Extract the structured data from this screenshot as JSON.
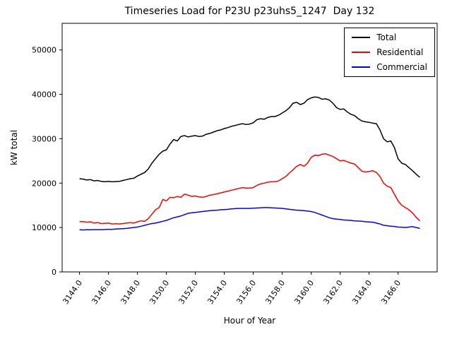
{
  "figure": {
    "background": "#ffffff"
  },
  "chart_data": {
    "type": "line",
    "title": "Timeseries Load for P23U p23uhs5_1247  Day 132",
    "xlabel": "Hour of Year",
    "ylabel": "kW total",
    "xlim": [
      3142.8,
      3168.7
    ],
    "ylim": [
      0,
      56000
    ],
    "grid": false,
    "legend_position": "upper right",
    "xticks": [
      {
        "value": 3144,
        "label": "3144.0"
      },
      {
        "value": 3146,
        "label": "3146.0"
      },
      {
        "value": 3148,
        "label": "3148.0"
      },
      {
        "value": 3150,
        "label": "3150.0"
      },
      {
        "value": 3152,
        "label": "3152.0"
      },
      {
        "value": 3154,
        "label": "3154.0"
      },
      {
        "value": 3156,
        "label": "3156.0"
      },
      {
        "value": 3158,
        "label": "3158.0"
      },
      {
        "value": 3160,
        "label": "3160.0"
      },
      {
        "value": 3162,
        "label": "3162.0"
      },
      {
        "value": 3164,
        "label": "3164.0"
      },
      {
        "value": 3166,
        "label": "3166.0"
      }
    ],
    "yticks": [
      {
        "value": 0,
        "label": "0"
      },
      {
        "value": 10000,
        "label": "10000"
      },
      {
        "value": 20000,
        "label": "20000"
      },
      {
        "value": 30000,
        "label": "30000"
      },
      {
        "value": 40000,
        "label": "40000"
      },
      {
        "value": 50000,
        "label": "50000"
      }
    ],
    "x": [
      3144.0,
      3144.25,
      3144.5,
      3144.75,
      3145.0,
      3145.25,
      3145.5,
      3145.75,
      3146.0,
      3146.25,
      3146.5,
      3146.75,
      3147.0,
      3147.25,
      3147.5,
      3147.75,
      3148.0,
      3148.25,
      3148.5,
      3148.75,
      3149.0,
      3149.25,
      3149.5,
      3149.75,
      3150.0,
      3150.25,
      3150.5,
      3150.75,
      3151.0,
      3151.25,
      3151.5,
      3151.75,
      3152.0,
      3152.25,
      3152.5,
      3152.75,
      3153.0,
      3153.25,
      3153.5,
      3153.75,
      3154.0,
      3154.25,
      3154.5,
      3154.75,
      3155.0,
      3155.25,
      3155.5,
      3155.75,
      3156.0,
      3156.25,
      3156.5,
      3156.75,
      3157.0,
      3157.25,
      3157.5,
      3157.75,
      3158.0,
      3158.25,
      3158.5,
      3158.75,
      3159.0,
      3159.25,
      3159.5,
      3159.75,
      3160.0,
      3160.25,
      3160.5,
      3160.75,
      3161.0,
      3161.25,
      3161.5,
      3161.75,
      3162.0,
      3162.25,
      3162.5,
      3162.75,
      3163.0,
      3163.25,
      3163.5,
      3163.75,
      3164.0,
      3164.25,
      3164.5,
      3164.75,
      3165.0,
      3165.25,
      3165.5,
      3165.75,
      3166.0,
      3166.25,
      3166.5,
      3166.75,
      3167.0,
      3167.25,
      3167.5
    ],
    "series": [
      {
        "name": "Total",
        "color": "#000000",
        "values": [
          21000,
          20900,
          20700,
          20800,
          20500,
          20600,
          20400,
          20300,
          20400,
          20300,
          20350,
          20400,
          20600,
          20800,
          21000,
          21100,
          21600,
          22000,
          22400,
          23200,
          24500,
          25500,
          26500,
          27200,
          27500,
          28800,
          29800,
          29500,
          30500,
          30700,
          30400,
          30600,
          30700,
          30500,
          30600,
          31000,
          31200,
          31500,
          31800,
          32000,
          32300,
          32500,
          32800,
          33000,
          33200,
          33400,
          33200,
          33300,
          33600,
          34300,
          34500,
          34400,
          34800,
          35000,
          35000,
          35300,
          35800,
          36300,
          37000,
          38000,
          38200,
          37700,
          38000,
          38800,
          39200,
          39400,
          39300,
          38900,
          39000,
          38700,
          38000,
          37000,
          36600,
          36700,
          36000,
          35500,
          35200,
          34500,
          34000,
          33800,
          33700,
          33500,
          33400,
          32000,
          30000,
          29300,
          29500,
          28000,
          25500,
          24500,
          24200,
          23500,
          22800,
          22000,
          21300
        ]
      },
      {
        "name": "Residential",
        "color": "#ff0000",
        "values": [
          11300,
          11350,
          11200,
          11300,
          11000,
          11100,
          10900,
          10950,
          11000,
          10800,
          10850,
          10800,
          10900,
          11000,
          11100,
          11000,
          11300,
          11500,
          11400,
          12000,
          13000,
          14000,
          14500,
          16300,
          16000,
          16800,
          16700,
          17000,
          16800,
          17500,
          17300,
          17000,
          17100,
          16900,
          16800,
          17000,
          17300,
          17400,
          17600,
          17800,
          18000,
          18200,
          18400,
          18600,
          18800,
          19000,
          18900,
          18900,
          19000,
          19500,
          19800,
          20000,
          20200,
          20300,
          20300,
          20500,
          21000,
          21500,
          22300,
          23000,
          23800,
          24200,
          23800,
          24500,
          25800,
          26300,
          26200,
          26500,
          26600,
          26300,
          26000,
          25500,
          25000,
          25100,
          24800,
          24500,
          24300,
          23500,
          22700,
          22500,
          22600,
          22800,
          22400,
          21500,
          20000,
          19300,
          19000,
          17500,
          16000,
          15000,
          14500,
          14000,
          13300,
          12300,
          11500
        ]
      },
      {
        "name": "Commercial",
        "color": "#0000ff",
        "values": [
          9500,
          9450,
          9500,
          9480,
          9500,
          9520,
          9500,
          9550,
          9600,
          9600,
          9650,
          9700,
          9750,
          9800,
          9900,
          10000,
          10100,
          10300,
          10500,
          10700,
          10900,
          11000,
          11200,
          11400,
          11600,
          11900,
          12200,
          12400,
          12600,
          12900,
          13200,
          13300,
          13400,
          13500,
          13600,
          13700,
          13800,
          13850,
          13900,
          14000,
          14050,
          14100,
          14200,
          14250,
          14300,
          14300,
          14300,
          14300,
          14350,
          14400,
          14450,
          14500,
          14500,
          14450,
          14400,
          14350,
          14300,
          14200,
          14100,
          14000,
          13900,
          13850,
          13800,
          13700,
          13600,
          13400,
          13100,
          12800,
          12500,
          12200,
          12000,
          11900,
          11800,
          11700,
          11650,
          11600,
          11500,
          11450,
          11400,
          11300,
          11250,
          11200,
          11000,
          10800,
          10500,
          10400,
          10300,
          10250,
          10100,
          10050,
          10000,
          10100,
          10200,
          10000,
          9800
        ]
      }
    ]
  }
}
